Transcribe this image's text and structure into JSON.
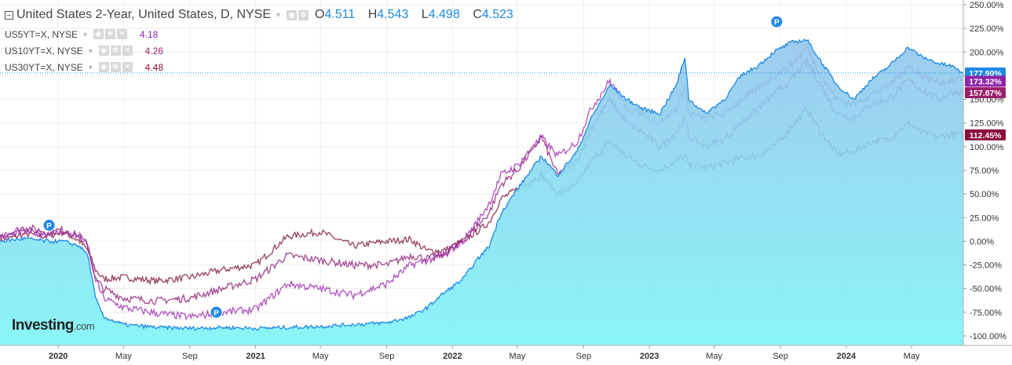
{
  "legend": {
    "main": {
      "title": "United States 2-Year, United States, D, NYSE",
      "o_label": "O",
      "o_value": "4.511",
      "h_label": "H",
      "h_value": "4.543",
      "l_label": "L",
      "l_value": "4.498",
      "c_label": "C",
      "c_value": "4.523"
    },
    "compare": [
      {
        "symbol": "US5YT=X, NYSE",
        "value": "4.18",
        "color": "#8e24aa"
      },
      {
        "symbol": "US10YT=X, NYSE",
        "value": "4.26",
        "color": "#9c1f6b"
      },
      {
        "symbol": "US30YT=X, NYSE",
        "value": "4.48",
        "color": "#8b0a3c"
      }
    ]
  },
  "brand": {
    "name": "Investing",
    "suffix": ".com"
  },
  "colors": {
    "us2y": "#1e88e5",
    "us5y": "#9c27b0",
    "us10y": "#8e1a74",
    "us30y": "#7a0f3a",
    "area_top": "#91c4ec",
    "area_bottom": "#80f5f7",
    "grid": "#eeeeee"
  },
  "chart_data": {
    "type": "line",
    "title": "United States 2-Year, United States, D, NYSE",
    "y_axis_unit": "%",
    "ylim": [
      -110,
      255
    ],
    "y_ticks": [
      "250.00%",
      "225.00%",
      "200.00%",
      "175.00%",
      "150.00%",
      "125.00%",
      "100.00%",
      "75.00%",
      "50.00%",
      "25.00%",
      "0.00%",
      "-25.00%",
      "-50.00%",
      "-75.00%",
      "-100.00%"
    ],
    "y_tick_values": [
      250,
      225,
      200,
      175,
      150,
      125,
      100,
      75,
      50,
      25,
      0,
      -25,
      -50,
      -75,
      -100
    ],
    "x_range": [
      "2019-09-15",
      "2024-08-05"
    ],
    "x_ticks": [
      {
        "label": "2020",
        "date": "2020-01-01",
        "bold": true
      },
      {
        "label": "May",
        "date": "2020-05-01",
        "bold": false
      },
      {
        "label": "Sep",
        "date": "2020-09-01",
        "bold": false
      },
      {
        "label": "2021",
        "date": "2021-01-01",
        "bold": true
      },
      {
        "label": "May",
        "date": "2021-05-01",
        "bold": false
      },
      {
        "label": "Sep",
        "date": "2021-09-01",
        "bold": false
      },
      {
        "label": "2022",
        "date": "2022-01-01",
        "bold": true
      },
      {
        "label": "May",
        "date": "2022-05-01",
        "bold": false
      },
      {
        "label": "Sep",
        "date": "2022-09-01",
        "bold": false
      },
      {
        "label": "2023",
        "date": "2023-01-01",
        "bold": true
      },
      {
        "label": "May",
        "date": "2023-05-01",
        "bold": false
      },
      {
        "label": "Sep",
        "date": "2023-09-01",
        "bold": false
      },
      {
        "label": "2024",
        "date": "2024-01-01",
        "bold": true
      },
      {
        "label": "May",
        "date": "2024-05-01",
        "bold": false
      }
    ],
    "series": [
      {
        "name": "United States 2-Year",
        "key": "us2y",
        "style": "area",
        "last_label": "177.90%",
        "points": [
          [
            "2019-09-15",
            0
          ],
          [
            "2019-11-01",
            3
          ],
          [
            "2019-12-10",
            0
          ],
          [
            "2020-01-10",
            0
          ],
          [
            "2020-02-10",
            -5
          ],
          [
            "2020-02-25",
            -15
          ],
          [
            "2020-03-10",
            -60
          ],
          [
            "2020-03-25",
            -80
          ],
          [
            "2020-05-01",
            -88
          ],
          [
            "2020-07-01",
            -91
          ],
          [
            "2020-09-01",
            -92
          ],
          [
            "2020-11-01",
            -91
          ],
          [
            "2021-01-01",
            -92
          ],
          [
            "2021-03-01",
            -91
          ],
          [
            "2021-05-01",
            -90
          ],
          [
            "2021-07-01",
            -88
          ],
          [
            "2021-09-01",
            -86
          ],
          [
            "2021-10-15",
            -80
          ],
          [
            "2021-11-15",
            -70
          ],
          [
            "2021-12-15",
            -55
          ],
          [
            "2022-01-20",
            -40
          ],
          [
            "2022-02-15",
            -20
          ],
          [
            "2022-03-10",
            -5
          ],
          [
            "2022-04-01",
            30
          ],
          [
            "2022-05-01",
            55
          ],
          [
            "2022-06-15",
            90
          ],
          [
            "2022-07-15",
            70
          ],
          [
            "2022-08-20",
            95
          ],
          [
            "2022-09-15",
            130
          ],
          [
            "2022-10-20",
            165
          ],
          [
            "2022-11-20",
            150
          ],
          [
            "2022-12-20",
            140
          ],
          [
            "2023-01-20",
            135
          ],
          [
            "2023-02-20",
            165
          ],
          [
            "2023-03-08",
            195
          ],
          [
            "2023-03-15",
            150
          ],
          [
            "2023-04-15",
            135
          ],
          [
            "2023-05-20",
            150
          ],
          [
            "2023-06-20",
            175
          ],
          [
            "2023-07-20",
            185
          ],
          [
            "2023-08-20",
            200
          ],
          [
            "2023-09-20",
            210
          ],
          [
            "2023-10-20",
            213
          ],
          [
            "2023-11-15",
            190
          ],
          [
            "2023-12-15",
            165
          ],
          [
            "2024-01-15",
            150
          ],
          [
            "2024-02-15",
            170
          ],
          [
            "2024-03-20",
            185
          ],
          [
            "2024-04-25",
            205
          ],
          [
            "2024-05-20",
            195
          ],
          [
            "2024-06-20",
            188
          ],
          [
            "2024-07-15",
            185
          ],
          [
            "2024-08-05",
            178
          ]
        ]
      },
      {
        "name": "US5YT=X, NYSE",
        "key": "us5y",
        "style": "line",
        "last_label": "173.32%",
        "points": [
          [
            "2019-09-15",
            5
          ],
          [
            "2019-11-01",
            10
          ],
          [
            "2019-12-10",
            8
          ],
          [
            "2020-01-10",
            10
          ],
          [
            "2020-02-10",
            5
          ],
          [
            "2020-02-25",
            -5
          ],
          [
            "2020-03-10",
            -40
          ],
          [
            "2020-03-25",
            -60
          ],
          [
            "2020-05-01",
            -70
          ],
          [
            "2020-07-01",
            -76
          ],
          [
            "2020-09-01",
            -80
          ],
          [
            "2020-11-01",
            -75
          ],
          [
            "2021-01-01",
            -72
          ],
          [
            "2021-03-01",
            -45
          ],
          [
            "2021-05-01",
            -50
          ],
          [
            "2021-07-01",
            -57
          ],
          [
            "2021-09-01",
            -45
          ],
          [
            "2021-10-15",
            -25
          ],
          [
            "2021-11-15",
            -20
          ],
          [
            "2021-12-15",
            -15
          ],
          [
            "2022-01-20",
            0
          ],
          [
            "2022-02-15",
            20
          ],
          [
            "2022-03-10",
            40
          ],
          [
            "2022-04-01",
            70
          ],
          [
            "2022-05-01",
            80
          ],
          [
            "2022-06-15",
            110
          ],
          [
            "2022-07-15",
            90
          ],
          [
            "2022-08-20",
            105
          ],
          [
            "2022-09-15",
            140
          ],
          [
            "2022-10-20",
            170
          ],
          [
            "2022-11-20",
            140
          ],
          [
            "2022-12-20",
            135
          ],
          [
            "2023-01-20",
            125
          ],
          [
            "2023-02-20",
            140
          ],
          [
            "2023-03-08",
            165
          ],
          [
            "2023-03-15",
            135
          ],
          [
            "2023-04-15",
            130
          ],
          [
            "2023-05-20",
            135
          ],
          [
            "2023-06-20",
            150
          ],
          [
            "2023-07-20",
            160
          ],
          [
            "2023-08-20",
            175
          ],
          [
            "2023-09-20",
            185
          ],
          [
            "2023-10-20",
            205
          ],
          [
            "2023-11-15",
            175
          ],
          [
            "2023-12-15",
            150
          ],
          [
            "2024-01-15",
            145
          ],
          [
            "2024-02-15",
            155
          ],
          [
            "2024-03-20",
            165
          ],
          [
            "2024-04-25",
            185
          ],
          [
            "2024-05-20",
            175
          ],
          [
            "2024-06-20",
            168
          ],
          [
            "2024-07-15",
            170
          ],
          [
            "2024-08-05",
            173
          ]
        ]
      },
      {
        "name": "US10YT=X, NYSE",
        "key": "us10y",
        "style": "line",
        "last_label": "157.87%",
        "points": [
          [
            "2019-09-15",
            5
          ],
          [
            "2019-11-01",
            15
          ],
          [
            "2019-12-10",
            10
          ],
          [
            "2020-01-10",
            12
          ],
          [
            "2020-02-10",
            5
          ],
          [
            "2020-02-25",
            -5
          ],
          [
            "2020-03-10",
            -40
          ],
          [
            "2020-03-25",
            -50
          ],
          [
            "2020-05-01",
            -60
          ],
          [
            "2020-07-01",
            -63
          ],
          [
            "2020-09-01",
            -60
          ],
          [
            "2020-11-01",
            -50
          ],
          [
            "2021-01-01",
            -40
          ],
          [
            "2021-03-01",
            -15
          ],
          [
            "2021-05-01",
            -20
          ],
          [
            "2021-07-01",
            -25
          ],
          [
            "2021-09-01",
            -25
          ],
          [
            "2021-10-15",
            -15
          ],
          [
            "2021-11-15",
            -18
          ],
          [
            "2021-12-15",
            -15
          ],
          [
            "2022-01-20",
            0
          ],
          [
            "2022-02-15",
            15
          ],
          [
            "2022-03-10",
            30
          ],
          [
            "2022-04-01",
            60
          ],
          [
            "2022-05-01",
            75
          ],
          [
            "2022-06-15",
            110
          ],
          [
            "2022-07-15",
            70
          ],
          [
            "2022-08-20",
            85
          ],
          [
            "2022-09-15",
            120
          ],
          [
            "2022-10-20",
            150
          ],
          [
            "2022-11-20",
            125
          ],
          [
            "2022-12-20",
            115
          ],
          [
            "2023-01-20",
            100
          ],
          [
            "2023-02-20",
            115
          ],
          [
            "2023-03-08",
            130
          ],
          [
            "2023-03-15",
            110
          ],
          [
            "2023-04-15",
            100
          ],
          [
            "2023-05-20",
            108
          ],
          [
            "2023-06-20",
            125
          ],
          [
            "2023-07-20",
            140
          ],
          [
            "2023-08-20",
            155
          ],
          [
            "2023-09-20",
            170
          ],
          [
            "2023-10-20",
            190
          ],
          [
            "2023-11-15",
            165
          ],
          [
            "2023-12-15",
            135
          ],
          [
            "2024-01-15",
            130
          ],
          [
            "2024-02-15",
            145
          ],
          [
            "2024-03-20",
            150
          ],
          [
            "2024-04-25",
            170
          ],
          [
            "2024-05-20",
            160
          ],
          [
            "2024-06-20",
            150
          ],
          [
            "2024-07-15",
            158
          ],
          [
            "2024-08-05",
            158
          ]
        ]
      },
      {
        "name": "US30YT=X, NYSE",
        "key": "us30y",
        "style": "line",
        "last_label": "112.45%",
        "points": [
          [
            "2019-09-15",
            0
          ],
          [
            "2019-11-01",
            8
          ],
          [
            "2019-12-10",
            5
          ],
          [
            "2020-01-10",
            10
          ],
          [
            "2020-02-10",
            0
          ],
          [
            "2020-02-25",
            -10
          ],
          [
            "2020-03-10",
            -30
          ],
          [
            "2020-03-25",
            -40
          ],
          [
            "2020-05-01",
            -38
          ],
          [
            "2020-07-01",
            -42
          ],
          [
            "2020-09-01",
            -38
          ],
          [
            "2020-11-01",
            -30
          ],
          [
            "2021-01-01",
            -25
          ],
          [
            "2021-03-01",
            5
          ],
          [
            "2021-05-01",
            10
          ],
          [
            "2021-07-01",
            -5
          ],
          [
            "2021-09-01",
            0
          ],
          [
            "2021-10-15",
            2
          ],
          [
            "2021-11-15",
            -10
          ],
          [
            "2021-12-15",
            -10
          ],
          [
            "2022-01-20",
            0
          ],
          [
            "2022-02-15",
            10
          ],
          [
            "2022-03-10",
            20
          ],
          [
            "2022-04-01",
            45
          ],
          [
            "2022-05-01",
            55
          ],
          [
            "2022-06-15",
            70
          ],
          [
            "2022-07-15",
            50
          ],
          [
            "2022-08-20",
            60
          ],
          [
            "2022-09-15",
            85
          ],
          [
            "2022-10-20",
            105
          ],
          [
            "2022-11-20",
            90
          ],
          [
            "2022-12-20",
            80
          ],
          [
            "2023-01-20",
            75
          ],
          [
            "2023-02-20",
            85
          ],
          [
            "2023-03-08",
            90
          ],
          [
            "2023-03-15",
            80
          ],
          [
            "2023-04-15",
            78
          ],
          [
            "2023-05-20",
            82
          ],
          [
            "2023-06-20",
            88
          ],
          [
            "2023-07-20",
            90
          ],
          [
            "2023-08-20",
            100
          ],
          [
            "2023-09-20",
            120
          ],
          [
            "2023-10-20",
            140
          ],
          [
            "2023-11-15",
            115
          ],
          [
            "2023-12-15",
            92
          ],
          [
            "2024-01-15",
            95
          ],
          [
            "2024-02-15",
            105
          ],
          [
            "2024-03-20",
            108
          ],
          [
            "2024-04-25",
            125
          ],
          [
            "2024-05-20",
            115
          ],
          [
            "2024-06-20",
            110
          ],
          [
            "2024-07-15",
            113
          ],
          [
            "2024-08-05",
            112
          ]
        ]
      }
    ],
    "markers": [
      {
        "label": "P",
        "date": "2019-12-15",
        "value": 17
      },
      {
        "label": "P",
        "date": "2020-10-20",
        "value": -75
      },
      {
        "label": "P",
        "date": "2023-08-25",
        "value": 232
      }
    ],
    "current_line_value": 177.9,
    "grid": true,
    "legend_position": "top-left"
  }
}
